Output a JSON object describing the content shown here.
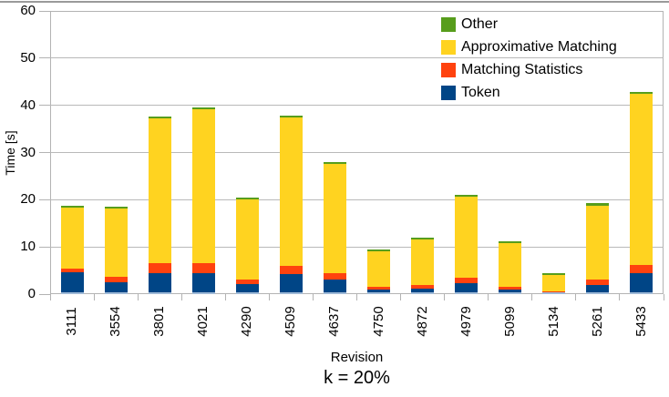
{
  "colors": {
    "background": "#ffffff",
    "grid": "#b9b9b9",
    "axis": "#b3b3b3",
    "text": "#000000",
    "top_border": "#9a9a9a",
    "bar_base_stripe": "#9fb9d6"
  },
  "chart_data": {
    "type": "bar",
    "stacked": true,
    "title": "",
    "xlabel": "Revision",
    "ylabel": "Time [s]",
    "caption": "k = 20%",
    "categories": [
      "3111",
      "3554",
      "3801",
      "4021",
      "4290",
      "4509",
      "4637",
      "4750",
      "4872",
      "4979",
      "5099",
      "5134",
      "5261",
      "5433"
    ],
    "series": [
      {
        "name": "Token",
        "color": "#004586",
        "values": [
          4.6,
          2.6,
          4.5,
          4.4,
          2.1,
          4.3,
          3.1,
          1.0,
          1.2,
          2.3,
          0.9,
          0.3,
          1.9,
          4.5
        ]
      },
      {
        "name": "Matching Statistics",
        "color": "#ff420e",
        "values": [
          0.8,
          1.0,
          2.1,
          2.1,
          1.0,
          1.7,
          1.4,
          0.5,
          0.7,
          1.2,
          0.6,
          0.3,
          1.2,
          1.7
        ]
      },
      {
        "name": "Approximative Matching",
        "color": "#ffd320",
        "values": [
          12.9,
          14.6,
          30.6,
          32.6,
          16.9,
          31.4,
          23.1,
          7.6,
          9.6,
          17.2,
          9.3,
          3.5,
          15.7,
          36.2
        ]
      },
      {
        "name": "Other",
        "color": "#579d1c",
        "values": [
          0.4,
          0.4,
          0.4,
          0.4,
          0.4,
          0.4,
          0.4,
          0.4,
          0.4,
          0.4,
          0.4,
          0.3,
          0.4,
          0.4
        ]
      }
    ],
    "totals": [
      18.7,
      18.6,
      37.6,
      39.5,
      20.4,
      37.8,
      28.0,
      9.5,
      11.9,
      21.1,
      11.2,
      4.4,
      19.2,
      42.8
    ],
    "ylim": [
      0,
      60
    ],
    "y_ticks": [
      0,
      10,
      20,
      30,
      40,
      50,
      60
    ],
    "grid": true,
    "legend_position": "top-right-inside",
    "legend_order": [
      "Other",
      "Approximative Matching",
      "Matching Statistics",
      "Token"
    ]
  }
}
